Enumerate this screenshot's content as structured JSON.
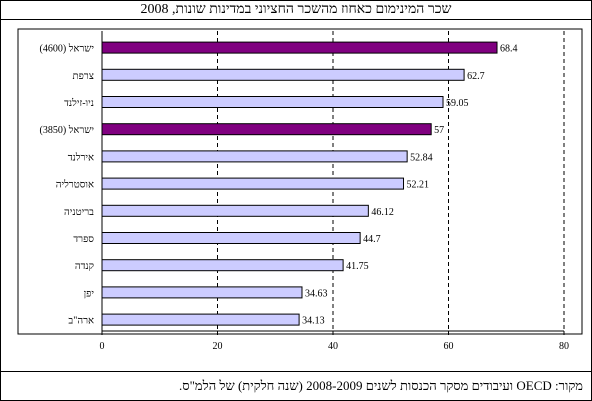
{
  "chart_data": {
    "type": "bar",
    "orientation": "horizontal",
    "title": "שכר המינימום כאחוז מהשכר החציוני במדינות שונות, 2008",
    "categories": [
      "ישראל (4600)",
      "צרפת",
      "ניו-זילנד",
      "ישראל (3850)",
      "אירלנד",
      "אוסטרליה",
      "בריטניה",
      "ספרד",
      "קנדה",
      "יפן",
      "ארה\"ב"
    ],
    "values": [
      68.4,
      62.7,
      59.05,
      57,
      52.84,
      52.21,
      46.12,
      44.7,
      41.75,
      34.63,
      34.13
    ],
    "value_labels": [
      "68.4",
      "62.7",
      "59.05",
      "57",
      "52.84",
      "52.21",
      "46.12",
      "44.7",
      "41.75",
      "34.63",
      "34.13"
    ],
    "highlighted": [
      true,
      false,
      false,
      true,
      false,
      false,
      false,
      false,
      false,
      false,
      false
    ],
    "xlim": [
      0,
      80
    ],
    "xticks": [
      0,
      20,
      40,
      60,
      80
    ],
    "gridlines": "dashed vertical",
    "colors": {
      "bar": "#ccccff",
      "highlight": "#800080",
      "gridline": "#000000"
    },
    "xlabel": "",
    "ylabel": ""
  },
  "source": "מקור: OECD ועיבודים מסקר הכנסות לשנים 2008-2009 (שנה חלקית) של הלמ\"ס."
}
